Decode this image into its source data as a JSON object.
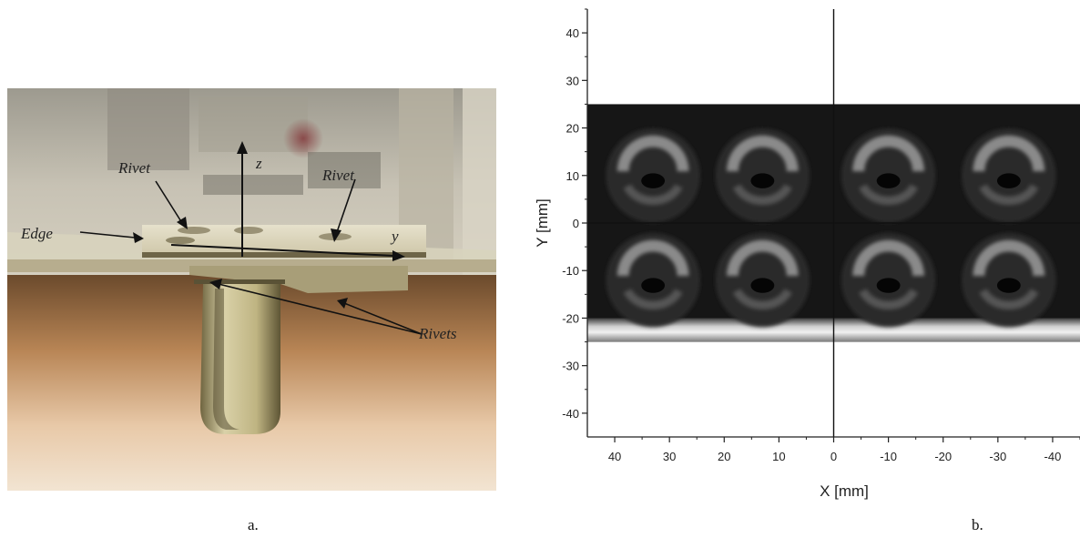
{
  "photo": {
    "labels": {
      "rivet_left": "Rivet",
      "rivet_right": "Rivet",
      "edge": "Edge",
      "rivets": "Rivets",
      "axis_z": "z",
      "axis_y": "y"
    }
  },
  "chart_data": {
    "type": "heatmap",
    "xlabel": "X [mm]",
    "ylabel": "Y [mm]",
    "xlim": [
      45,
      -45
    ],
    "ylim": [
      -45,
      45
    ],
    "x_ticks": [
      40,
      30,
      20,
      10,
      0,
      -10,
      -20,
      -30,
      -40
    ],
    "y_ticks": [
      40,
      30,
      20,
      10,
      0,
      -10,
      -20,
      -30,
      -40
    ],
    "x_reversed": true,
    "grid": false,
    "crosshair": [
      0,
      0
    ],
    "image_extent": {
      "x": [
        45,
        -45
      ],
      "y": [
        -25,
        25
      ]
    },
    "rivet_x": [
      33,
      13,
      -10,
      -32
    ],
    "rivet_y": [
      10,
      -12
    ],
    "bright_band_y": [
      -25,
      -20
    ],
    "colormap": "gray"
  },
  "captions": {
    "a": "a.",
    "b": "b."
  }
}
